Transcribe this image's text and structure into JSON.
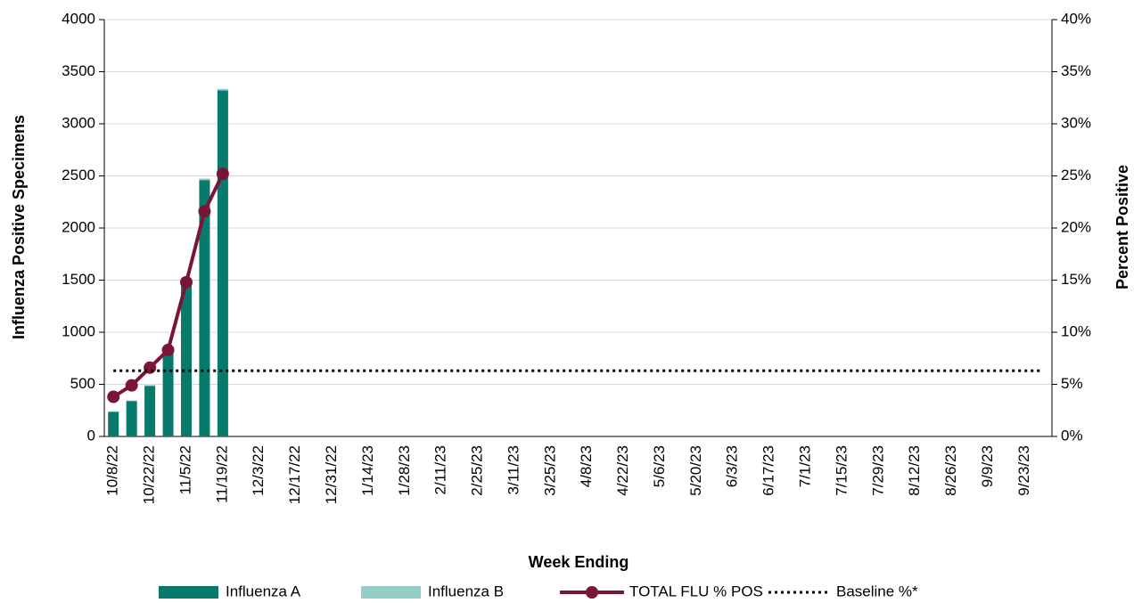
{
  "chart_data": {
    "type": "bar",
    "x_label": "Week Ending",
    "y_label": "Influenza Positive Specimens",
    "y2_label": "Percent Positive",
    "categories": [
      "10/8/22",
      null,
      "10/22/22",
      null,
      "11/5/22",
      null,
      "11/19/22",
      null,
      "12/3/22",
      null,
      "12/17/22",
      null,
      "12/31/22",
      null,
      "1/14/23",
      null,
      "1/28/23",
      null,
      "2/11/23",
      null,
      "2/25/23",
      null,
      "3/11/23",
      null,
      "3/25/23",
      null,
      "4/8/23",
      null,
      "4/22/23",
      null,
      "5/6/23",
      null,
      "5/20/23",
      null,
      "6/3/23",
      null,
      "6/17/23",
      null,
      "7/1/23",
      null,
      "7/15/23",
      null,
      "7/29/23",
      null,
      "8/12/23",
      null,
      "8/26/23",
      null,
      "9/9/23",
      null,
      "9/23/23",
      null
    ],
    "stacked": true,
    "grid": true,
    "legend": "bottom",
    "ylim": [
      0,
      4000
    ],
    "yticks": [
      0,
      500,
      1000,
      1500,
      2000,
      2500,
      3000,
      3500,
      4000
    ],
    "y2lim": [
      0,
      40
    ],
    "y2ticks": [
      {
        "value": 0,
        "label": "0%"
      },
      {
        "value": 5,
        "label": "5%"
      },
      {
        "value": 10,
        "label": "10%"
      },
      {
        "value": 15,
        "label": "15%"
      },
      {
        "value": 20,
        "label": "20%"
      },
      {
        "value": 25,
        "label": "25%"
      },
      {
        "value": 30,
        "label": "30%"
      },
      {
        "value": 35,
        "label": "35%"
      },
      {
        "value": 40,
        "label": "40%"
      }
    ],
    "series": [
      {
        "name": "Influenza A",
        "type": "bar",
        "color": "#087a6c",
        "values": [
          235,
          340,
          485,
          800,
          1470,
          2460,
          3320,
          null,
          null,
          null,
          null,
          null,
          null,
          null,
          null,
          null,
          null,
          null,
          null,
          null,
          null,
          null,
          null,
          null,
          null,
          null,
          null,
          null,
          null,
          null,
          null,
          null,
          null,
          null,
          null,
          null,
          null,
          null,
          null,
          null,
          null,
          null,
          null,
          null,
          null,
          null,
          null,
          null,
          null,
          null,
          null,
          null
        ]
      },
      {
        "name": "Influenza B",
        "type": "bar",
        "color": "#95cdc8",
        "values": [
          5,
          5,
          8,
          10,
          10,
          15,
          15,
          null,
          null,
          null,
          null,
          null,
          null,
          null,
          null,
          null,
          null,
          null,
          null,
          null,
          null,
          null,
          null,
          null,
          null,
          null,
          null,
          null,
          null,
          null,
          null,
          null,
          null,
          null,
          null,
          null,
          null,
          null,
          null,
          null,
          null,
          null,
          null,
          null,
          null,
          null,
          null,
          null,
          null,
          null,
          null,
          null
        ]
      },
      {
        "name": "TOTAL FLU % POS",
        "type": "line",
        "axis": "y2",
        "color": "#7a1539",
        "markers": true,
        "values": [
          3.8,
          4.9,
          6.6,
          8.3,
          14.8,
          21.6,
          25.2,
          null,
          null,
          null,
          null,
          null,
          null,
          null,
          null,
          null,
          null,
          null,
          null,
          null,
          null,
          null,
          null,
          null,
          null,
          null,
          null,
          null,
          null,
          null,
          null,
          null,
          null,
          null,
          null,
          null,
          null,
          null,
          null,
          null,
          null,
          null,
          null,
          null,
          null,
          null,
          null,
          null,
          null,
          null,
          null,
          null
        ]
      },
      {
        "name": "Baseline %*",
        "type": "line",
        "axis": "y2",
        "color": "#000000",
        "line_style": "dotted",
        "values": [
          6.3,
          6.3,
          6.3,
          6.3,
          6.3,
          6.3,
          6.3,
          6.3,
          6.3,
          6.3,
          6.3,
          6.3,
          6.3,
          6.3,
          6.3,
          6.3,
          6.3,
          6.3,
          6.3,
          6.3,
          6.3,
          6.3,
          6.3,
          6.3,
          6.3,
          6.3,
          6.3,
          6.3,
          6.3,
          6.3,
          6.3,
          6.3,
          6.3,
          6.3,
          6.3,
          6.3,
          6.3,
          6.3,
          6.3,
          6.3,
          6.3,
          6.3,
          6.3,
          6.3,
          6.3,
          6.3,
          6.3,
          6.3,
          6.3,
          6.3,
          6.3,
          6.3
        ]
      }
    ]
  }
}
